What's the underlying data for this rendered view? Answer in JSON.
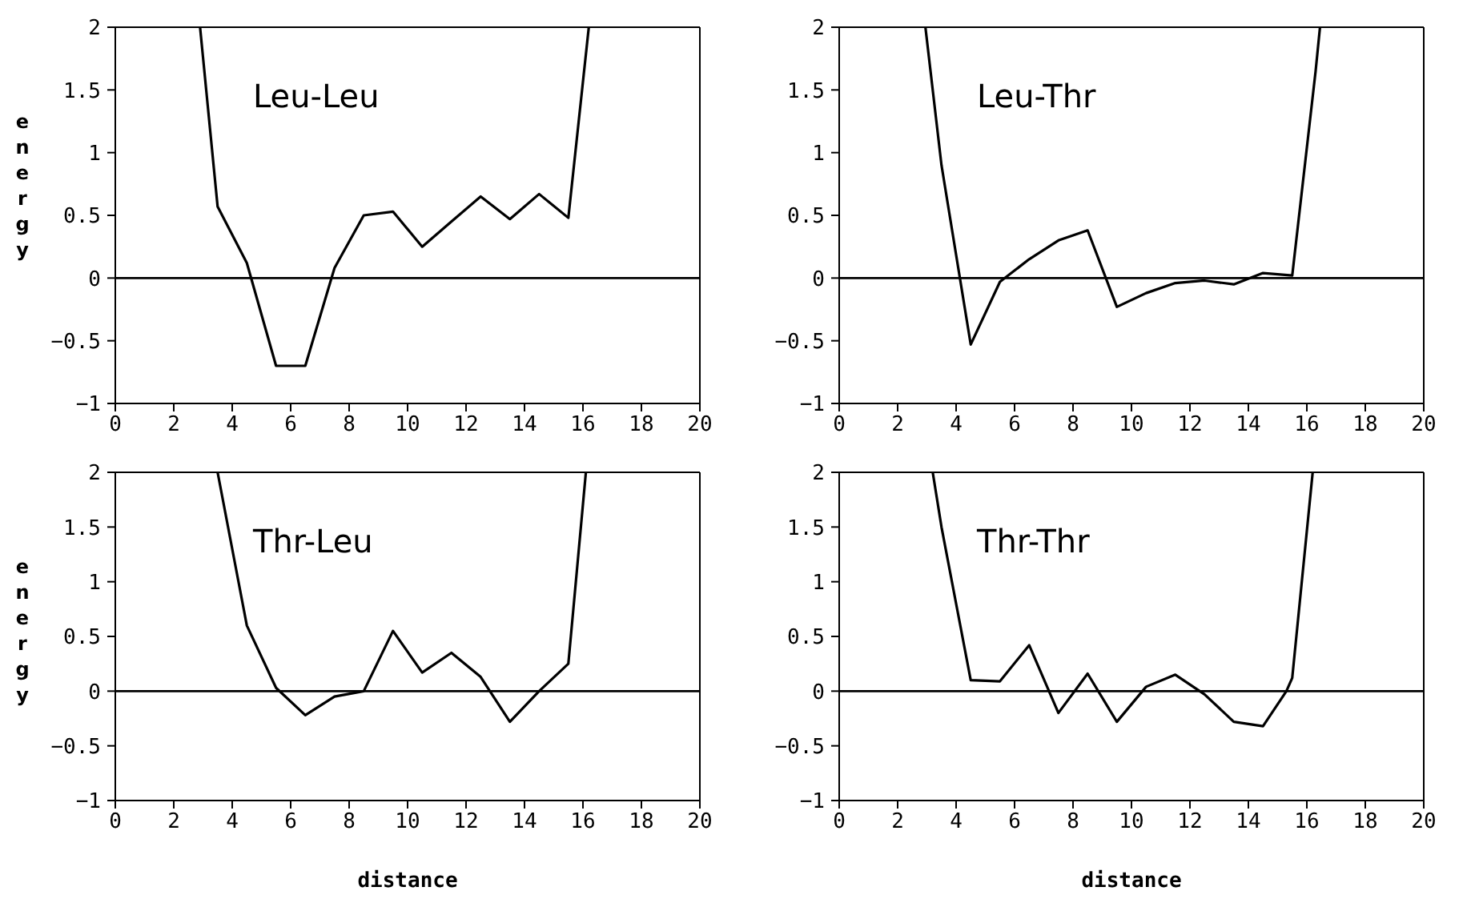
{
  "chart_data": [
    {
      "type": "line",
      "title": "Leu-Leu",
      "ylabel": "energy",
      "xlim": [
        0,
        20
      ],
      "xticks": [
        0,
        2,
        4,
        6,
        8,
        10,
        12,
        14,
        16,
        18,
        20
      ],
      "ylim": [
        -1,
        2
      ],
      "yticks": [
        -1,
        -0.5,
        0,
        0.5,
        1,
        1.5,
        2
      ],
      "ref_lines": [
        {
          "axis": "y",
          "value": 0
        }
      ],
      "series": [
        {
          "color": "#000000",
          "x": [
            2.9,
            3.5,
            4.5,
            5.5,
            6.5,
            7.5,
            8.5,
            9.5,
            10.5,
            11.5,
            12.5,
            13.5,
            14.5,
            15.5,
            16.2
          ],
          "values": [
            2,
            0.57,
            0.12,
            -0.7,
            -0.7,
            0.08,
            0.5,
            0.53,
            0.25,
            0.45,
            0.65,
            0.47,
            0.67,
            0.48,
            2
          ]
        }
      ]
    },
    {
      "type": "line",
      "title": "Leu-Thr",
      "xlim": [
        0,
        20
      ],
      "xticks": [
        0,
        2,
        4,
        6,
        8,
        10,
        12,
        14,
        16,
        18,
        20
      ],
      "ylim": [
        -1,
        2
      ],
      "yticks": [
        -1,
        -0.5,
        0,
        0.5,
        1,
        1.5,
        2
      ],
      "ref_lines": [
        {
          "axis": "y",
          "value": 0
        }
      ],
      "series": [
        {
          "color": "#000000",
          "x": [
            2.95,
            3.5,
            4.5,
            5.5,
            6.5,
            7.5,
            8.5,
            9.5,
            10.5,
            11.5,
            12.5,
            13.5,
            14.5,
            15.5,
            16.3,
            16.45
          ],
          "values": [
            2,
            0.9,
            -0.53,
            -0.03,
            0.15,
            0.3,
            0.38,
            -0.23,
            -0.12,
            -0.04,
            -0.02,
            -0.05,
            0.04,
            0.02,
            1.65,
            2
          ]
        }
      ]
    },
    {
      "type": "line",
      "title": "Thr-Leu",
      "ylabel": "energy",
      "xlabel": "distance",
      "xlim": [
        0,
        20
      ],
      "xticks": [
        0,
        2,
        4,
        6,
        8,
        10,
        12,
        14,
        16,
        18,
        20
      ],
      "ylim": [
        -1,
        2
      ],
      "yticks": [
        -1,
        -0.5,
        0,
        0.5,
        1,
        1.5,
        2
      ],
      "ref_lines": [
        {
          "axis": "y",
          "value": 0
        }
      ],
      "series": [
        {
          "color": "#000000",
          "x": [
            3.5,
            4.5,
            5.5,
            6.5,
            7.5,
            8.5,
            9.5,
            10.5,
            11.5,
            12.5,
            13.5,
            14.5,
            15.5,
            16.1
          ],
          "values": [
            2,
            0.6,
            0.03,
            -0.22,
            -0.05,
            0,
            0.55,
            0.17,
            0.35,
            0.13,
            -0.28,
            0,
            0.25,
            2
          ]
        }
      ]
    },
    {
      "type": "line",
      "title": "Thr-Thr",
      "xlabel": "distance",
      "xlim": [
        0,
        20
      ],
      "xticks": [
        0,
        2,
        4,
        6,
        8,
        10,
        12,
        14,
        16,
        18,
        20
      ],
      "ylim": [
        -1,
        2
      ],
      "yticks": [
        -1,
        -0.5,
        0,
        0.5,
        1,
        1.5,
        2
      ],
      "ref_lines": [
        {
          "axis": "y",
          "value": 0
        }
      ],
      "series": [
        {
          "color": "#000000",
          "x": [
            3.2,
            3.5,
            4.5,
            5.5,
            6.5,
            7.5,
            8.5,
            9.5,
            10.5,
            11.5,
            12.5,
            13.5,
            14.5,
            15.3,
            15.5,
            16.2
          ],
          "values": [
            2,
            1.5,
            0.1,
            0.09,
            0.42,
            -0.2,
            0.16,
            -0.28,
            0.04,
            0.15,
            -0.03,
            -0.28,
            -0.32,
            0,
            0.12,
            2
          ]
        }
      ]
    }
  ]
}
